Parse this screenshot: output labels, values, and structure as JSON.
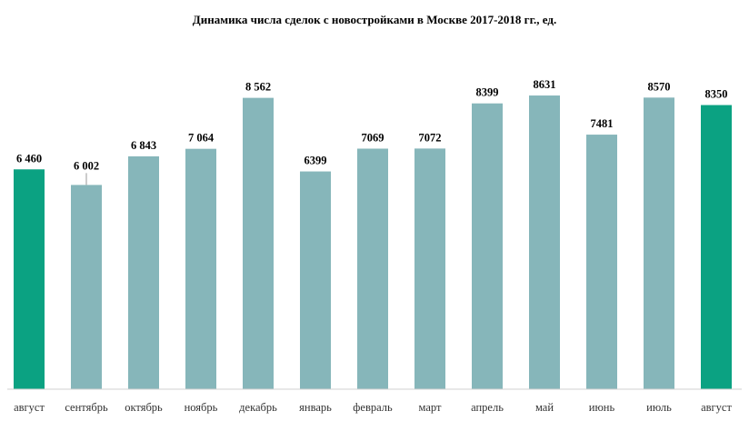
{
  "chart_data": {
    "type": "bar",
    "title": "Динамика числа сделок с новостройками в Москве 2017-2018 гг., ед.",
    "categories": [
      "август",
      "сентябрь",
      "октябрь",
      "ноябрь",
      "декабрь",
      "январь",
      "февраль",
      "март",
      "апрель",
      "май",
      "июнь",
      "июль",
      "август"
    ],
    "values": [
      6460,
      6002,
      6843,
      7064,
      8562,
      6399,
      7069,
      7072,
      8399,
      8631,
      7481,
      8570,
      8350
    ],
    "data_labels": [
      "6 460",
      "6 002",
      "6 843",
      "7 064",
      "8 562",
      "6399",
      "7069",
      "7072",
      "8399",
      "8631",
      "7481",
      "8570",
      "8350"
    ],
    "highlighted": [
      0,
      12
    ],
    "colors": {
      "default": "#86b6ba",
      "highlight": "#0ba282"
    },
    "ylim": [
      0,
      9000
    ],
    "grid": false,
    "legend": "none"
  }
}
